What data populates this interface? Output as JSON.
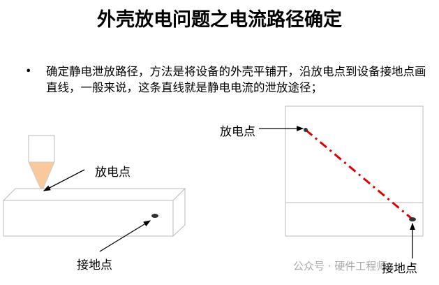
{
  "title": "外壳放电问题之电流路径确定",
  "bullet": "确定静电泄放路径，方法是将设备的外壳平铺开，沿放电点到设备接地点画直线，一般来说，这条直线就是静电电流的泄放途径；",
  "left_figure": {
    "discharge_label": "放电点",
    "ground_label": "接地点",
    "probe_tip_color": "#f8c99a"
  },
  "right_figure": {
    "discharge_label": "放电点",
    "ground_label": "接地点",
    "path_color": "#e00000"
  },
  "watermark": "公众号 · 硬件工程师"
}
